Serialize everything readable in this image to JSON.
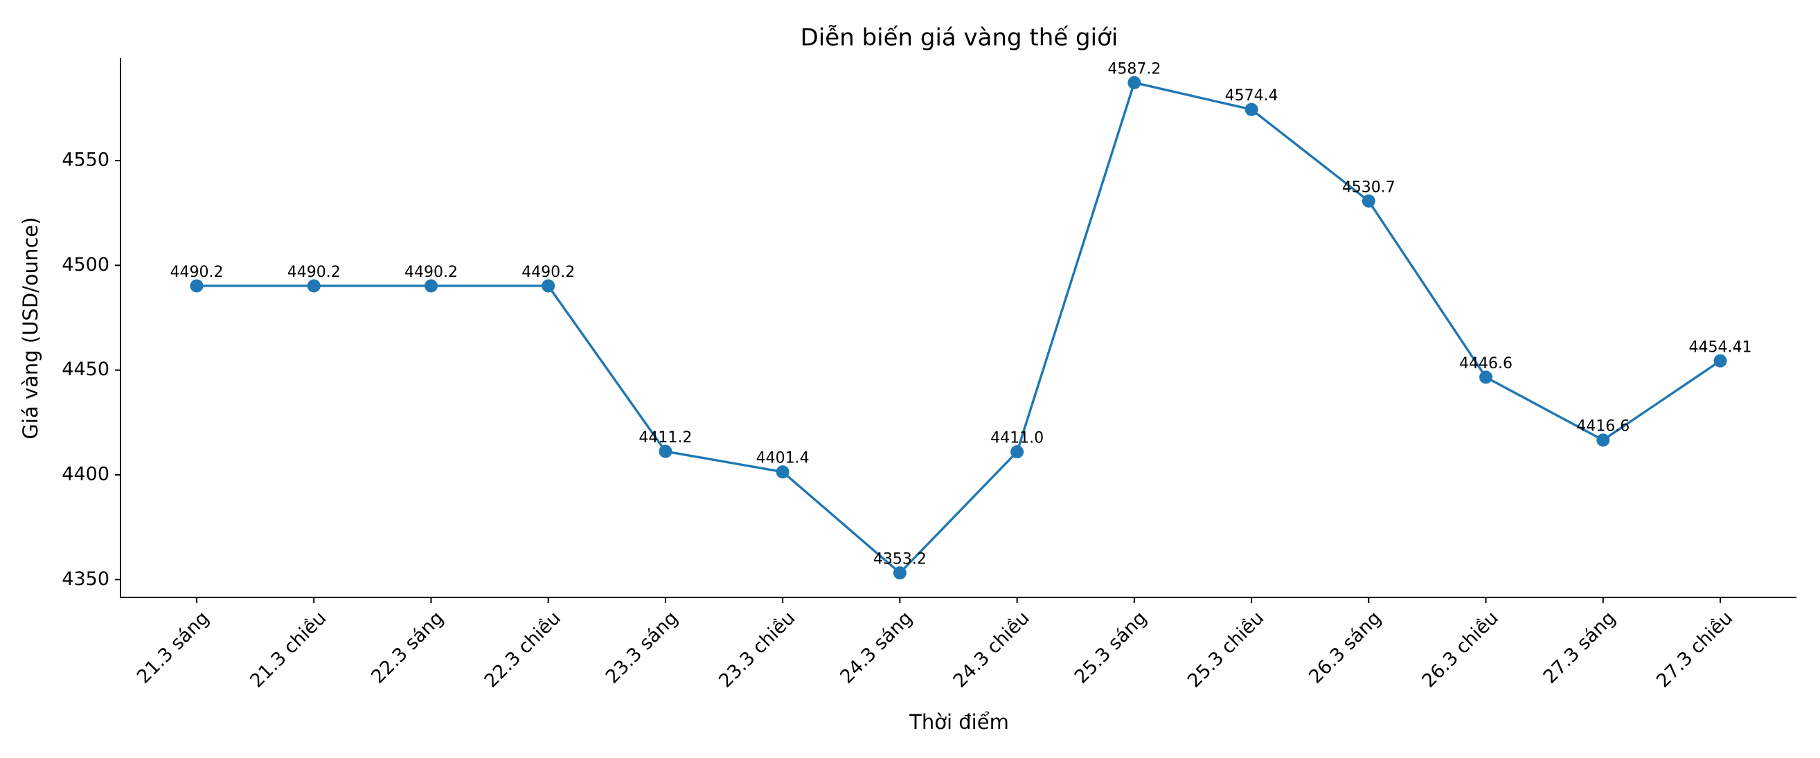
{
  "chart_data": {
    "type": "line",
    "title": "Diễn biến giá vàng thế giới",
    "x_label": "Thời điểm",
    "y_label": "Giá vàng (USD/ounce)",
    "categories": [
      "21.3 sáng",
      "21.3 chiều",
      "22.3 sáng",
      "22.3 chiều",
      "23.3 sáng",
      "23.3 chiều",
      "24.3 sáng",
      "24.3 chiều",
      "25.3 sáng",
      "25.3 chiều",
      "26.3 sáng",
      "26.3 chiều",
      "27.3 sáng",
      "27.3 chiều"
    ],
    "values": [
      4490.2,
      4490.2,
      4490.2,
      4490.2,
      4411.2,
      4401.4,
      4353.2,
      4411.0,
      4587.2,
      4574.4,
      4530.7,
      4446.6,
      4416.6,
      4454.41
    ],
    "value_labels": [
      "4490.2",
      "4490.2",
      "4490.2",
      "4490.2",
      "4411.2",
      "4401.4",
      "4353.2",
      "4411.0",
      "4587.2",
      "4574.4",
      "4530.7",
      "4446.6",
      "4416.6",
      "4454.41"
    ],
    "color": "#1f77b4",
    "ylim": [
      4341.5,
      4598.9
    ],
    "yticks": [
      4350,
      4400,
      4450,
      4500,
      4550
    ],
    "grid": false
  }
}
